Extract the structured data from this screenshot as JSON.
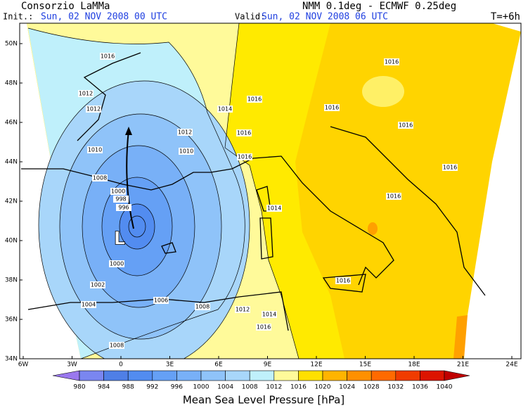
{
  "header": {
    "org": "Consorzio LaMMa",
    "model": "NMM 0.1deg - ECMWF 0.25deg",
    "init_label": "Init.:",
    "init_time": "Sun, 02 NOV 2008  00 UTC",
    "valid_label": "Valid:",
    "valid_time": "Sun, 02 NOV 2008  06 UTC",
    "lead": "T=+6h"
  },
  "map": {
    "lat_labels": [
      "50N",
      "48N",
      "46N",
      "44N",
      "42N",
      "40N",
      "38N",
      "36N",
      "34N"
    ],
    "lon_labels": [
      "6W",
      "3W",
      "0",
      "3E",
      "6E",
      "9E",
      "12E",
      "15E",
      "18E",
      "21E",
      "24E"
    ],
    "low_label": "L",
    "isobar_labels": [
      "1016",
      "1012",
      "1012",
      "1012",
      "1014",
      "1016",
      "1016",
      "1016",
      "1016",
      "1016",
      "1016",
      "1016",
      "1016",
      "1016",
      "1010",
      "1010",
      "1008",
      "1000",
      "998",
      "996",
      "1000",
      "1002",
      "1004",
      "1006",
      "1008",
      "1008",
      "1012",
      "1014",
      "1016",
      "1014"
    ]
  },
  "colorbar": {
    "labels": [
      "980",
      "984",
      "988",
      "992",
      "996",
      "1000",
      "1004",
      "1008",
      "1012",
      "1016",
      "1020",
      "1024",
      "1028",
      "1032",
      "1036",
      "1040"
    ],
    "colors": [
      "#9a78ee",
      "#7a86f0",
      "#4f7fe6",
      "#528cf0",
      "#65a0f5",
      "#78b0f7",
      "#8fc3f9",
      "#a8d6fa",
      "#bff0fb",
      "#fffa9a",
      "#ffe000",
      "#ffb400",
      "#ff9000",
      "#ff6a00",
      "#f03c00",
      "#dc1400",
      "#c00000"
    ],
    "title": "Mean Sea Level Pressure [hPa]"
  }
}
